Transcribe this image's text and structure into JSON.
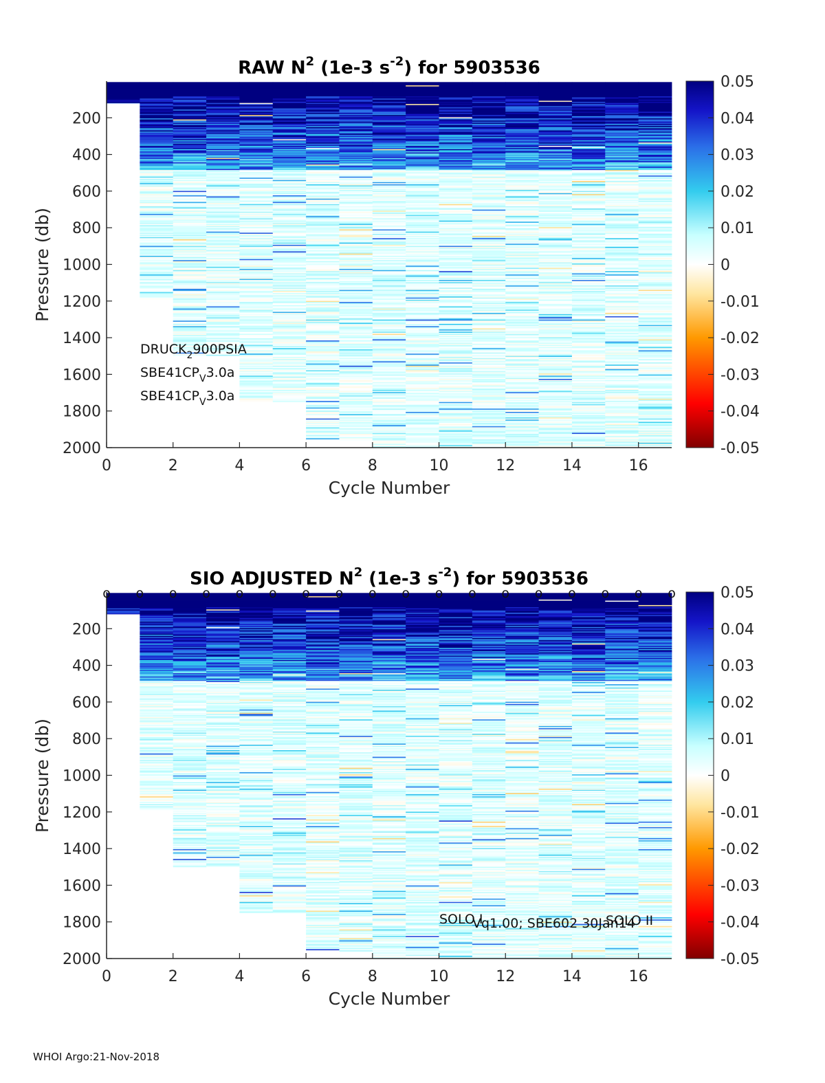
{
  "footer": "WHOI Argo:21-Nov-2018",
  "chart_data": [
    {
      "type": "heatmap",
      "title": {
        "prefix": "RAW N",
        "sup1": "2",
        "mid": " (1e-3 s",
        "sup2": "-2",
        "suffix": ") for 5903536"
      },
      "xlabel": "Cycle Number",
      "ylabel": "Pressure (db)",
      "xlim": [
        0,
        17
      ],
      "ylim": [
        2000,
        0
      ],
      "y_reversed": true,
      "x_ticks": [
        "0",
        "2",
        "4",
        "6",
        "8",
        "10",
        "12",
        "14",
        "16"
      ],
      "y_ticks": [
        "200",
        "400",
        "600",
        "800",
        "1000",
        "1200",
        "1400",
        "1600",
        "1800",
        "2000"
      ],
      "colorbar": {
        "range": [
          -0.05,
          0.05
        ],
        "ticks": [
          "0.05",
          "0.04",
          "0.03",
          "0.02",
          "0.01",
          "0",
          "-0.01",
          "-0.02",
          "-0.03",
          "-0.04",
          "-0.05"
        ],
        "colormap": "jet-with-white-center"
      },
      "columns": [
        {
          "cycle": 0,
          "p_min": 5,
          "p_max": 120
        },
        {
          "cycle": 1,
          "p_min": 5,
          "p_max": 1190
        },
        {
          "cycle": 2,
          "p_min": 5,
          "p_max": 1500
        },
        {
          "cycle": 3,
          "p_min": 5,
          "p_max": 1500
        },
        {
          "cycle": 4,
          "p_min": 5,
          "p_max": 1750
        },
        {
          "cycle": 5,
          "p_min": 5,
          "p_max": 1750
        },
        {
          "cycle": 6,
          "p_min": 5,
          "p_max": 1960
        },
        {
          "cycle": 7,
          "p_min": 5,
          "p_max": 1960
        },
        {
          "cycle": 8,
          "p_min": 5,
          "p_max": 2000
        },
        {
          "cycle": 9,
          "p_min": 5,
          "p_max": 2000
        },
        {
          "cycle": 10,
          "p_min": 5,
          "p_max": 2000
        },
        {
          "cycle": 11,
          "p_min": 5,
          "p_max": 2000
        },
        {
          "cycle": 12,
          "p_min": 5,
          "p_max": 2000
        },
        {
          "cycle": 13,
          "p_min": 5,
          "p_max": 2000
        },
        {
          "cycle": 14,
          "p_min": 5,
          "p_max": 2000
        },
        {
          "cycle": 15,
          "p_min": 5,
          "p_max": 2000
        },
        {
          "cycle": 16,
          "p_min": 5,
          "p_max": 2000
        }
      ],
      "annotations": [
        {
          "text": "DRUCK",
          "sub": "2",
          "rest": "900PSIA"
        },
        {
          "text": "SBE41CP",
          "sub": "V",
          "rest": "3.0a"
        },
        {
          "text": "SBE41CP",
          "sub": "V",
          "rest": "3.0a"
        }
      ]
    },
    {
      "type": "heatmap",
      "title": {
        "prefix": "SIO  ADJUSTED N",
        "sup1": "2",
        "mid": " (1e-3 s",
        "sup2": "-2",
        "suffix": ") for 5903536"
      },
      "xlabel": "Cycle Number",
      "ylabel": "Pressure (db)",
      "xlim": [
        0,
        17
      ],
      "ylim": [
        2000,
        0
      ],
      "y_reversed": true,
      "x_ticks": [
        "0",
        "2",
        "4",
        "6",
        "8",
        "10",
        "12",
        "14",
        "16"
      ],
      "y_ticks": [
        "200",
        "400",
        "600",
        "800",
        "1000",
        "1200",
        "1400",
        "1600",
        "1800",
        "2000"
      ],
      "colorbar": {
        "range": [
          -0.05,
          0.05
        ],
        "ticks": [
          "0.05",
          "0.04",
          "0.03",
          "0.02",
          "0.01",
          "0",
          "-0.01",
          "-0.02",
          "-0.03",
          "-0.04",
          "-0.05"
        ],
        "colormap": "jet-with-white-center"
      },
      "columns": [
        {
          "cycle": 0,
          "p_min": 5,
          "p_max": 120
        },
        {
          "cycle": 1,
          "p_min": 5,
          "p_max": 1190
        },
        {
          "cycle": 2,
          "p_min": 5,
          "p_max": 1500
        },
        {
          "cycle": 3,
          "p_min": 5,
          "p_max": 1500
        },
        {
          "cycle": 4,
          "p_min": 5,
          "p_max": 1750
        },
        {
          "cycle": 5,
          "p_min": 5,
          "p_max": 1750
        },
        {
          "cycle": 6,
          "p_min": 5,
          "p_max": 1960
        },
        {
          "cycle": 7,
          "p_min": 5,
          "p_max": 1960
        },
        {
          "cycle": 8,
          "p_min": 5,
          "p_max": 2000
        },
        {
          "cycle": 9,
          "p_min": 5,
          "p_max": 2000
        },
        {
          "cycle": 10,
          "p_min": 5,
          "p_max": 2000
        },
        {
          "cycle": 11,
          "p_min": 5,
          "p_max": 2000
        },
        {
          "cycle": 12,
          "p_min": 5,
          "p_max": 2000
        },
        {
          "cycle": 13,
          "p_min": 5,
          "p_max": 2000
        },
        {
          "cycle": 14,
          "p_min": 5,
          "p_max": 2000
        },
        {
          "cycle": 15,
          "p_min": 5,
          "p_max": 2000
        },
        {
          "cycle": 16,
          "p_min": 5,
          "p_max": 2000
        }
      ],
      "top_markers": {
        "symbol": "o",
        "cycles": [
          0,
          1,
          2,
          3,
          4,
          5,
          6,
          7,
          8,
          9,
          10,
          11,
          12,
          13,
          14,
          15,
          16,
          17
        ]
      },
      "annotations": [
        {
          "text": "SOLO I",
          "x": 10
        },
        {
          "text": "Vq1.00; SBE602 30Jan14",
          "x": 11
        },
        {
          "text": "SOLO II",
          "x": 15
        }
      ]
    }
  ]
}
